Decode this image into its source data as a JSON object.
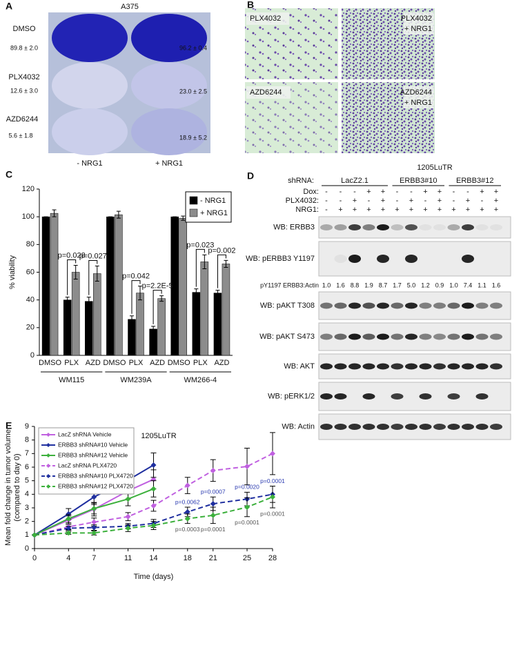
{
  "panels": {
    "a": {
      "label": "A",
      "title": "A375",
      "rows": [
        {
          "name": "DMSO",
          "minus": "89.8 ± 2.0",
          "plus": "96.2 ± 0.4"
        },
        {
          "name": "PLX4032",
          "minus": "12.6 ± 3.0",
          "plus": "23.0 ± 2.5"
        },
        {
          "name": "AZD6244",
          "minus": "5.6 ± 1.8",
          "plus": "18.9 ± 5.2"
        }
      ],
      "columns": [
        "- NRG1",
        "+ NRG1"
      ]
    },
    "b": {
      "label": "B",
      "images": [
        [
          "PLX4032"
        ],
        [
          "PLX4032",
          "+ NRG1"
        ],
        [
          "AZD6244"
        ],
        [
          "AZD6244",
          "+ NRG1"
        ]
      ]
    },
    "d": {
      "label": "D",
      "cell_line": "1205LuTR",
      "shrna_label": "shRNA:",
      "groups": [
        "LacZ2.1",
        "ERBB3#10",
        "ERBB3#12"
      ],
      "treatments": [
        {
          "name": "Dox:",
          "signs": [
            [
              "-",
              "-",
              "-",
              "+",
              "+"
            ],
            [
              "-",
              "-",
              "+",
              "+"
            ],
            [
              "-",
              "-",
              "+",
              "+"
            ]
          ]
        },
        {
          "name": "PLX4032:",
          "signs": [
            [
              "-",
              "-",
              "+",
              "-",
              "+"
            ],
            [
              "-",
              "+",
              "-",
              "+"
            ],
            [
              "-",
              "+",
              "-",
              "+"
            ]
          ]
        },
        {
          "name": "NRG1:",
          "signs": [
            [
              "-",
              "+",
              "+",
              "+",
              "+"
            ],
            [
              "+",
              "+",
              "+",
              "+"
            ],
            [
              "+",
              "+",
              "+",
              "+"
            ]
          ]
        }
      ],
      "blots": [
        "WB: ERBB3",
        "WB: pERBB3 Y1197",
        "WB: pAKT T308",
        "WB: pAKT S473",
        "WB: AKT",
        "WB: pERK1/2",
        "WB: Actin"
      ],
      "ratio": {
        "label": "pY1197 ERBB3:Actin",
        "values": [
          [
            "1.0",
            "1.6",
            "8.8",
            "1.9",
            "8.7"
          ],
          [
            "1.7",
            "5.0",
            "1.2",
            "0.9"
          ],
          [
            "1.0",
            "7.4",
            "1.1",
            "1.6"
          ]
        ]
      }
    }
  },
  "chart_data": [
    {
      "type": "bar",
      "panel_label": "C",
      "y_label": "% viability",
      "categories": [
        "DMSO",
        "PLX",
        "AZD",
        "DMSO",
        "PLX",
        "AZD",
        "DMSO",
        "PLX",
        "AZD"
      ],
      "groups": [
        "WM115",
        "WM239A",
        "WM266-4"
      ],
      "series": [
        {
          "name": "- NRG1",
          "color": "#000000",
          "values": [
            100,
            40,
            39,
            100,
            26,
            19,
            100,
            45.5,
            45
          ],
          "errors": [
            0,
            2,
            3,
            0,
            2.5,
            2,
            0,
            2.5,
            2
          ]
        },
        {
          "name": "+ NRG1",
          "color": "#8c8c8c",
          "values": [
            102.5,
            60,
            59,
            101.5,
            45,
            41,
            99,
            67.5,
            66
          ],
          "errors": [
            2.5,
            5,
            5.5,
            2.5,
            5,
            2,
            1.5,
            5,
            2.5
          ]
        }
      ],
      "annotations": [
        "p=0.028",
        "p=0.027",
        "p=0.042",
        "p=2.2E-5",
        "p=0.023",
        "p=0.002"
      ],
      "ylim": [
        0,
        120
      ],
      "yticks": [
        0,
        20,
        40,
        60,
        80,
        100,
        120
      ],
      "legend": "upper right"
    },
    {
      "type": "line",
      "panel_label": "E",
      "title": "1205LuTR",
      "x_label": "Time (days)",
      "y_label": [
        "Mean fold change in tumor volume",
        "(compared to day 0)"
      ],
      "x": [
        0,
        4,
        7,
        11,
        14,
        18,
        21,
        25,
        28
      ],
      "series": [
        {
          "name": "LacZ shRNA Vehicle",
          "color": "#c060e0",
          "dashed": false,
          "values": [
            1,
            2.1,
            2.9,
            4.25,
            5.1,
            null,
            null,
            null,
            null
          ],
          "errors": [
            0,
            0.3,
            0.5,
            0.6,
            0.7,
            null,
            null,
            null,
            null
          ]
        },
        {
          "name": "ERBB3 shRNA#10 Vehicle",
          "color": "#1f2f9f",
          "dashed": false,
          "values": [
            1,
            2.55,
            3.8,
            5.05,
            6.15,
            null,
            null,
            null,
            null
          ],
          "errors": [
            0,
            0.4,
            0.55,
            0.6,
            0.9,
            null,
            null,
            null,
            null
          ]
        },
        {
          "name": "ERBB3 shRNA#12 Vehicle",
          "color": "#3cb03c",
          "dashed": false,
          "values": [
            1,
            2.2,
            2.95,
            3.65,
            4.4,
            null,
            null,
            null,
            null
          ],
          "errors": [
            0,
            0.3,
            0.4,
            0.5,
            0.6,
            null,
            null,
            null,
            null
          ]
        },
        {
          "name": "LacZ shRNA PLX4720",
          "color": "#c060e0",
          "dashed": true,
          "values": [
            1,
            1.6,
            1.95,
            2.35,
            3.15,
            4.65,
            5.75,
            6.05,
            7.0
          ],
          "errors": [
            0,
            0.2,
            0.3,
            0.3,
            0.4,
            0.6,
            0.8,
            1.35,
            1.55
          ]
        },
        {
          "name": "ERBB3 shRNA#10 PLX4720",
          "color": "#1f2f9f",
          "dashed": true,
          "values": [
            1,
            1.5,
            1.55,
            1.65,
            1.85,
            2.7,
            3.3,
            3.65,
            4.0
          ],
          "errors": [
            0,
            0.15,
            0.2,
            0.2,
            0.3,
            0.35,
            0.5,
            0.5,
            0.6
          ]
        },
        {
          "name": "ERBB3 shRNA#12 PLX4720",
          "color": "#3cb03c",
          "dashed": true,
          "values": [
            1,
            1.15,
            1.15,
            1.5,
            1.7,
            2.2,
            2.45,
            3.05,
            3.8
          ],
          "errors": [
            0,
            0.1,
            0.15,
            0.25,
            0.3,
            0.35,
            0.6,
            0.7,
            0.8
          ]
        }
      ],
      "annotations": [
        {
          "text": "p=0.0062",
          "color": "#2a3ab0"
        },
        {
          "text": "p=0.0007",
          "color": "#2a3ab0"
        },
        {
          "text": "p=0.0020",
          "color": "#2a3ab0"
        },
        {
          "text": "p=0.0001",
          "color": "#2a3ab0"
        },
        {
          "text": "p=0.0003",
          "color": "#555555"
        },
        {
          "text": "p=0.0001",
          "color": "#555555"
        },
        {
          "text": "p=0.0001",
          "color": "#555555"
        },
        {
          "text": "p=0.0001",
          "color": "#555555"
        }
      ],
      "xlim": [
        0,
        28
      ],
      "xticks": [
        0,
        4,
        7,
        11,
        14,
        18,
        21,
        25,
        28
      ],
      "ylim": [
        0,
        9
      ],
      "yticks": [
        0,
        1,
        2,
        3,
        4,
        5,
        6,
        7,
        8,
        9
      ],
      "legend": "upper left"
    }
  ]
}
